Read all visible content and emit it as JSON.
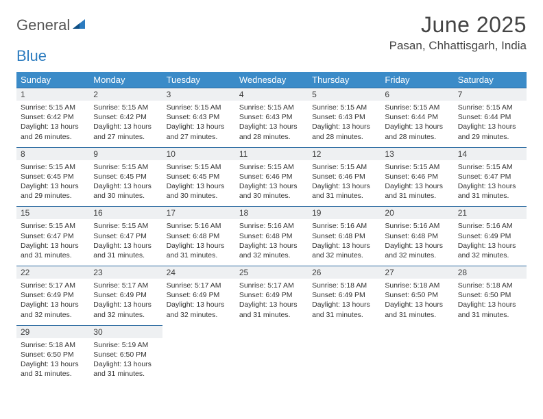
{
  "logo": {
    "part1": "General",
    "part2": "Blue"
  },
  "title": "June 2025",
  "location": "Pasan, Chhattisgarh, India",
  "colors": {
    "header_bg": "#3b8bc8",
    "header_text": "#ffffff",
    "daynum_bg": "#eef0f2",
    "border": "#2b6aa0",
    "logo_accent": "#2b7bbf",
    "text": "#333333"
  },
  "weekdays": [
    "Sunday",
    "Monday",
    "Tuesday",
    "Wednesday",
    "Thursday",
    "Friday",
    "Saturday"
  ],
  "weeks": [
    [
      {
        "n": "1",
        "sr": "5:15 AM",
        "ss": "6:42 PM",
        "dl": "13 hours and 26 minutes."
      },
      {
        "n": "2",
        "sr": "5:15 AM",
        "ss": "6:42 PM",
        "dl": "13 hours and 27 minutes."
      },
      {
        "n": "3",
        "sr": "5:15 AM",
        "ss": "6:43 PM",
        "dl": "13 hours and 27 minutes."
      },
      {
        "n": "4",
        "sr": "5:15 AM",
        "ss": "6:43 PM",
        "dl": "13 hours and 28 minutes."
      },
      {
        "n": "5",
        "sr": "5:15 AM",
        "ss": "6:43 PM",
        "dl": "13 hours and 28 minutes."
      },
      {
        "n": "6",
        "sr": "5:15 AM",
        "ss": "6:44 PM",
        "dl": "13 hours and 28 minutes."
      },
      {
        "n": "7",
        "sr": "5:15 AM",
        "ss": "6:44 PM",
        "dl": "13 hours and 29 minutes."
      }
    ],
    [
      {
        "n": "8",
        "sr": "5:15 AM",
        "ss": "6:45 PM",
        "dl": "13 hours and 29 minutes."
      },
      {
        "n": "9",
        "sr": "5:15 AM",
        "ss": "6:45 PM",
        "dl": "13 hours and 30 minutes."
      },
      {
        "n": "10",
        "sr": "5:15 AM",
        "ss": "6:45 PM",
        "dl": "13 hours and 30 minutes."
      },
      {
        "n": "11",
        "sr": "5:15 AM",
        "ss": "6:46 PM",
        "dl": "13 hours and 30 minutes."
      },
      {
        "n": "12",
        "sr": "5:15 AM",
        "ss": "6:46 PM",
        "dl": "13 hours and 31 minutes."
      },
      {
        "n": "13",
        "sr": "5:15 AM",
        "ss": "6:46 PM",
        "dl": "13 hours and 31 minutes."
      },
      {
        "n": "14",
        "sr": "5:15 AM",
        "ss": "6:47 PM",
        "dl": "13 hours and 31 minutes."
      }
    ],
    [
      {
        "n": "15",
        "sr": "5:15 AM",
        "ss": "6:47 PM",
        "dl": "13 hours and 31 minutes."
      },
      {
        "n": "16",
        "sr": "5:15 AM",
        "ss": "6:47 PM",
        "dl": "13 hours and 31 minutes."
      },
      {
        "n": "17",
        "sr": "5:16 AM",
        "ss": "6:48 PM",
        "dl": "13 hours and 31 minutes."
      },
      {
        "n": "18",
        "sr": "5:16 AM",
        "ss": "6:48 PM",
        "dl": "13 hours and 32 minutes."
      },
      {
        "n": "19",
        "sr": "5:16 AM",
        "ss": "6:48 PM",
        "dl": "13 hours and 32 minutes."
      },
      {
        "n": "20",
        "sr": "5:16 AM",
        "ss": "6:48 PM",
        "dl": "13 hours and 32 minutes."
      },
      {
        "n": "21",
        "sr": "5:16 AM",
        "ss": "6:49 PM",
        "dl": "13 hours and 32 minutes."
      }
    ],
    [
      {
        "n": "22",
        "sr": "5:17 AM",
        "ss": "6:49 PM",
        "dl": "13 hours and 32 minutes."
      },
      {
        "n": "23",
        "sr": "5:17 AM",
        "ss": "6:49 PM",
        "dl": "13 hours and 32 minutes."
      },
      {
        "n": "24",
        "sr": "5:17 AM",
        "ss": "6:49 PM",
        "dl": "13 hours and 32 minutes."
      },
      {
        "n": "25",
        "sr": "5:17 AM",
        "ss": "6:49 PM",
        "dl": "13 hours and 31 minutes."
      },
      {
        "n": "26",
        "sr": "5:18 AM",
        "ss": "6:49 PM",
        "dl": "13 hours and 31 minutes."
      },
      {
        "n": "27",
        "sr": "5:18 AM",
        "ss": "6:50 PM",
        "dl": "13 hours and 31 minutes."
      },
      {
        "n": "28",
        "sr": "5:18 AM",
        "ss": "6:50 PM",
        "dl": "13 hours and 31 minutes."
      }
    ],
    [
      {
        "n": "29",
        "sr": "5:18 AM",
        "ss": "6:50 PM",
        "dl": "13 hours and 31 minutes."
      },
      {
        "n": "30",
        "sr": "5:19 AM",
        "ss": "6:50 PM",
        "dl": "13 hours and 31 minutes."
      },
      null,
      null,
      null,
      null,
      null
    ]
  ],
  "labels": {
    "sunrise": "Sunrise:",
    "sunset": "Sunset:",
    "daylight": "Daylight:"
  }
}
